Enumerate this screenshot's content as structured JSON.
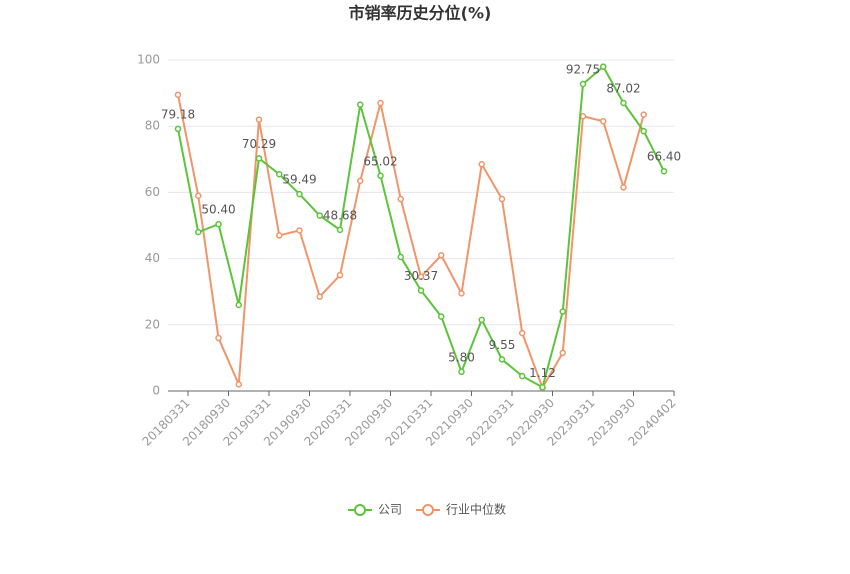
{
  "chart_data": {
    "type": "line",
    "title": "市销率历史分位(%)",
    "categories": [
      "20180331",
      null,
      "20180930",
      null,
      "20190331",
      null,
      "20190930",
      null,
      "20200331",
      null,
      "20200930",
      null,
      "20210331",
      null,
      "20210930",
      null,
      "20220331",
      null,
      "20220930",
      null,
      "20230331",
      null,
      "20230930",
      null,
      "20240402"
    ],
    "series": [
      {
        "name": "公司",
        "color": "#5cc43a",
        "values": [
          79.18,
          48,
          50.4,
          26,
          70.29,
          65.5,
          59.49,
          53,
          48.68,
          86.5,
          65.02,
          40.5,
          30.37,
          22.5,
          5.8,
          21.5,
          9.55,
          4.5,
          1.12,
          24,
          92.75,
          98,
          87.02,
          78.5,
          66.4
        ],
        "value_labels": [
          "79.18",
          null,
          "50.40",
          null,
          "70.29",
          null,
          "59.49",
          null,
          "48.68",
          null,
          "65.02",
          null,
          "30.37",
          null,
          "5.80",
          null,
          "9.55",
          null,
          "1.12",
          null,
          "92.75",
          null,
          "87.02",
          null,
          "66.40"
        ]
      },
      {
        "name": "行业中位数",
        "color": "#f0956a",
        "values": [
          89.5,
          59,
          16,
          2,
          82,
          47,
          48.5,
          28.5,
          35,
          63.5,
          87,
          58,
          34.5,
          41,
          29.5,
          68.5,
          58,
          17.5,
          1,
          11.5,
          83,
          81.5,
          61.5,
          83.5,
          null
        ]
      }
    ],
    "ylim": [
      0,
      100
    ],
    "yticks": [
      0,
      20,
      40,
      60,
      80,
      100
    ],
    "grid": true,
    "legend": "bottom"
  }
}
